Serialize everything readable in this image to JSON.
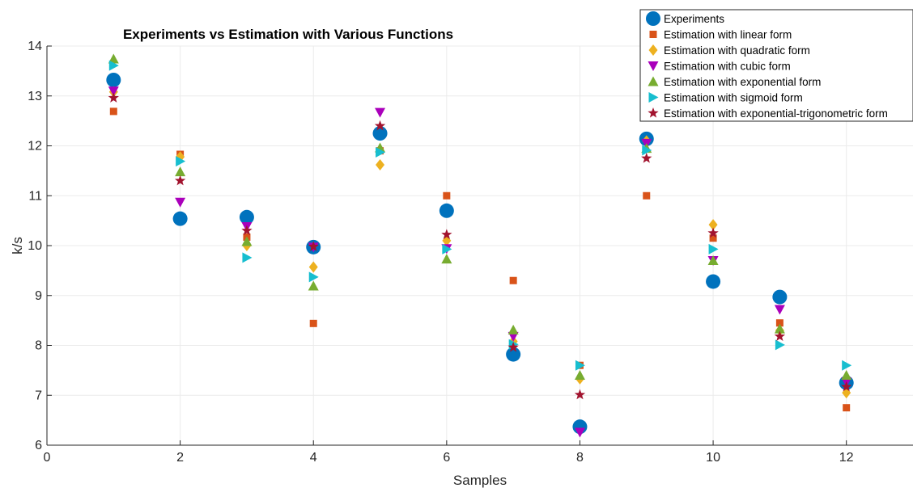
{
  "chart_data": {
    "type": "scatter",
    "title": "Experiments vs Estimation with Various Functions",
    "xlabel": "Samples",
    "ylabel": "k/s",
    "xlim": [
      0,
      13
    ],
    "ylim": [
      6,
      14
    ],
    "xticks": [
      0,
      2,
      4,
      6,
      8,
      10,
      12
    ],
    "yticks": [
      6,
      7,
      8,
      9,
      10,
      11,
      12,
      13,
      14
    ],
    "grid": true,
    "legend_position": "top-right",
    "x": [
      1,
      2,
      3,
      4,
      5,
      6,
      7,
      8,
      9,
      10,
      11,
      12
    ],
    "series": [
      {
        "name": "Experiments",
        "marker": "circle",
        "color": "#0072BD",
        "values": [
          13.32,
          10.54,
          10.57,
          9.97,
          12.25,
          10.7,
          7.82,
          6.37,
          12.14,
          9.28,
          8.97,
          7.25
        ]
      },
      {
        "name": "Estimation with linear form",
        "marker": "square",
        "color": "#D95319",
        "values": [
          12.69,
          11.83,
          10.17,
          8.44,
          11.9,
          11.0,
          9.3,
          7.6,
          11.0,
          10.15,
          8.45,
          6.75
        ]
      },
      {
        "name": "Estimation with quadratic form",
        "marker": "diamond",
        "color": "#EDB120",
        "values": [
          13.08,
          11.78,
          10.0,
          9.57,
          11.62,
          10.1,
          8.08,
          7.33,
          12.1,
          10.42,
          8.3,
          7.05
        ]
      },
      {
        "name": "Estimation with cubic form",
        "marker": "triangle-down",
        "color": "#AA00BB",
        "values": [
          13.1,
          10.87,
          10.38,
          9.97,
          12.67,
          9.94,
          8.18,
          6.26,
          12.05,
          9.7,
          8.72,
          7.27
        ]
      },
      {
        "name": "Estimation with exponential form",
        "marker": "triangle-up",
        "color": "#77AC30",
        "values": [
          13.74,
          11.48,
          10.08,
          9.19,
          11.96,
          9.73,
          8.31,
          7.4,
          11.95,
          9.7,
          8.33,
          7.4
        ]
      },
      {
        "name": "Estimation with sigmoid form",
        "marker": "triangle-right",
        "color": "#17BECF",
        "values": [
          13.61,
          11.69,
          9.76,
          9.37,
          11.87,
          9.93,
          8.02,
          7.6,
          11.91,
          9.93,
          8.01,
          7.6
        ]
      },
      {
        "name": "Estimation with exponential-trigonometric form",
        "marker": "star",
        "color": "#A2142F",
        "values": [
          12.96,
          11.3,
          10.3,
          9.98,
          12.4,
          10.22,
          7.96,
          7.01,
          11.75,
          10.25,
          8.18,
          7.17
        ]
      }
    ]
  }
}
